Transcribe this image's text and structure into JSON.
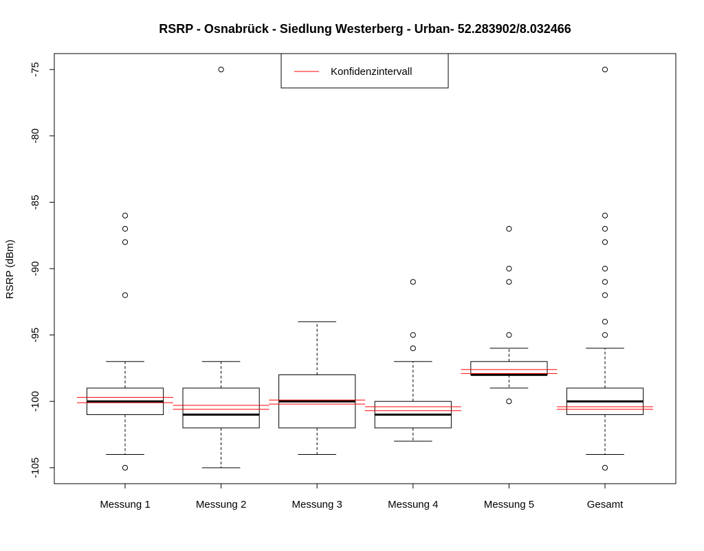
{
  "chart_data": {
    "type": "box",
    "title": "RSRP - Osnabrück - Siedlung Westerberg - Urban- 52.283902/8.032466",
    "ylabel": "RSRP (dBm)",
    "xlabel": "",
    "ylim": [
      -106.2,
      -73.8
    ],
    "yticks": [
      -75,
      -80,
      -85,
      -90,
      -95,
      -100,
      -105
    ],
    "grid": false,
    "legend": {
      "position": "top-center",
      "entries": [
        {
          "label": "Konfidenzintervall",
          "color": "#ff0000"
        }
      ]
    },
    "categories": [
      "Messung 1",
      "Messung 2",
      "Messung 3",
      "Messung 4",
      "Messung 5",
      "Gesamt"
    ],
    "boxes": [
      {
        "name": "Messung 1",
        "whisker_low": -104,
        "q1": -101,
        "median": -100,
        "q3": -99,
        "whisker_high": -97,
        "outliers": [
          -86,
          -87,
          -88,
          -92,
          -105
        ],
        "ci": [
          -100.1,
          -99.7
        ]
      },
      {
        "name": "Messung 2",
        "whisker_low": -105,
        "q1": -102,
        "median": -101,
        "q3": -99,
        "whisker_high": -97,
        "outliers": [
          -75
        ],
        "ci": [
          -100.6,
          -100.3
        ]
      },
      {
        "name": "Messung 3",
        "whisker_low": -104,
        "q1": -102,
        "median": -100,
        "q3": -98,
        "whisker_high": -94,
        "outliers": [],
        "ci": [
          -100.2,
          -99.9
        ]
      },
      {
        "name": "Messung 4",
        "whisker_low": -103,
        "q1": -102,
        "median": -101,
        "q3": -100,
        "whisker_high": -97,
        "outliers": [
          -91,
          -95,
          -96
        ],
        "ci": [
          -100.7,
          -100.4
        ]
      },
      {
        "name": "Messung 5",
        "whisker_low": -99,
        "q1": -98,
        "median": -98,
        "q3": -97,
        "whisker_high": -96,
        "outliers": [
          -87,
          -90,
          -91,
          -95,
          -100
        ],
        "ci": [
          -97.9,
          -97.6
        ]
      },
      {
        "name": "Gesamt",
        "whisker_low": -104,
        "q1": -101,
        "median": -100,
        "q3": -99,
        "whisker_high": -96,
        "outliers": [
          -75,
          -86,
          -87,
          -88,
          -90,
          -91,
          -92,
          -94,
          -95,
          -105
        ],
        "ci": [
          -100.6,
          -100.4
        ]
      }
    ],
    "colors": {
      "box": "#000000",
      "ci": "#ff0000"
    }
  }
}
